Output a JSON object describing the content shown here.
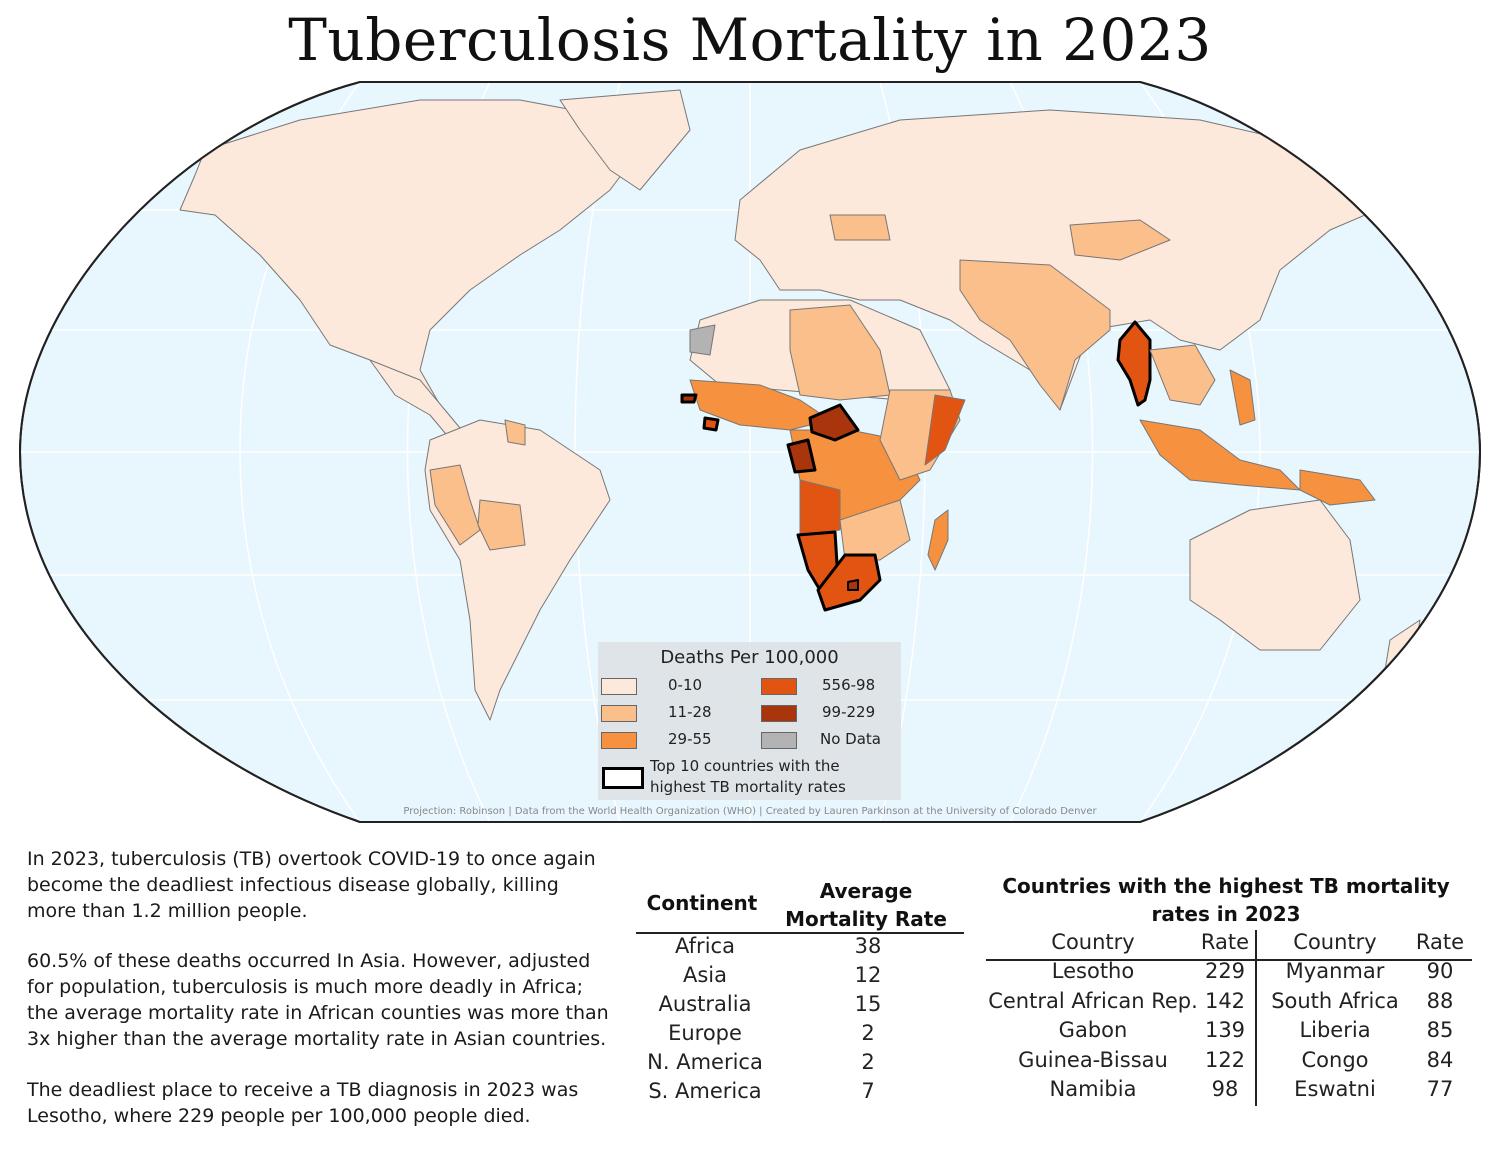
{
  "title": "Tuberculosis Mortality in 2023",
  "legend": {
    "title": "Deaths Per 100,000",
    "items": [
      {
        "label": "0-10",
        "color": "#fde9dc"
      },
      {
        "label": "11-28",
        "color": "#fbbf8c"
      },
      {
        "label": "29-55",
        "color": "#f5913f"
      },
      {
        "label": "556-98",
        "color": "#e25412"
      },
      {
        "label": "99-229",
        "color": "#a8350c"
      },
      {
        "label": "No Data",
        "color": "#b3b3b3"
      }
    ],
    "top10_label_line1": "Top 10 countries with the",
    "top10_label_line2": "highest TB mortality rates"
  },
  "credit": "Projection: Robinson | Data from the World Health Organization (WHO) | Created by Lauren Parkinson at the University of Colorado Denver",
  "paragraphs": {
    "p1_l1": "In 2023, tuberculosis (TB) overtook COVID-19 to once again",
    "p1_l2": "become the deadliest infectious disease globally, killing",
    "p1_l3": "more than 1.2 million people.",
    "p2_l1": "60.5% of these deaths occurred In Asia. However, adjusted",
    "p2_l2": "for population, tuberculosis is much more deadly in Africa;",
    "p2_l3": "the average mortality rate in African counties was more than",
    "p2_l4": "3x higher than the average mortality rate in Asian countries.",
    "p3_l1": "The deadliest place to receive a TB diagnosis in 2023 was",
    "p3_l2": "Lesotho, where 229 people per 100,000 people died."
  },
  "continent_table": {
    "header_continent": "Continent",
    "header_rate_l1": "Average",
    "header_rate_l2": "Mortality Rate",
    "rows": [
      {
        "continent": "Africa",
        "rate": "38"
      },
      {
        "continent": "Asia",
        "rate": "12"
      },
      {
        "continent": "Australia",
        "rate": "15"
      },
      {
        "continent": "Europe",
        "rate": "2"
      },
      {
        "continent": "N. America",
        "rate": "2"
      },
      {
        "continent": "S. America",
        "rate": "7"
      }
    ]
  },
  "top_table": {
    "title_l1": "Countries with the highest TB mortality",
    "title_l2": "rates in 2023",
    "header_country": "Country",
    "header_rate": "Rate",
    "left": [
      {
        "country": "Lesotho",
        "rate": "229"
      },
      {
        "country": "Central African Rep.",
        "rate": "142"
      },
      {
        "country": "Gabon",
        "rate": "139"
      },
      {
        "country": "Guinea-Bissau",
        "rate": "122"
      },
      {
        "country": "Namibia",
        "rate": "98"
      }
    ],
    "right": [
      {
        "country": "Myanmar",
        "rate": "90"
      },
      {
        "country": "South Africa",
        "rate": "88"
      },
      {
        "country": "Liberia",
        "rate": "85"
      },
      {
        "country": "Congo",
        "rate": "84"
      },
      {
        "country": "Eswatni",
        "rate": "77"
      }
    ]
  }
}
